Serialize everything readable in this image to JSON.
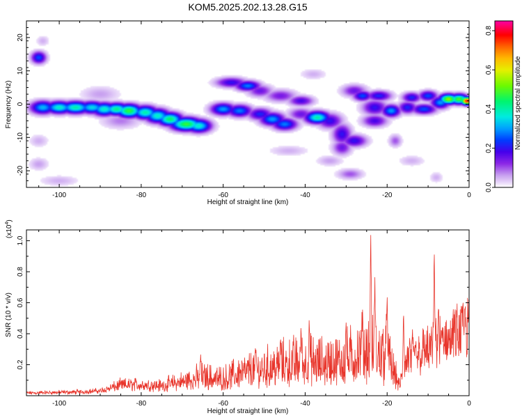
{
  "title": "KOM5.2025.202.13.28.G15",
  "spectrogram": {
    "type": "heatmap",
    "xlabel": "Height of straight line (km)",
    "ylabel": "Frequency (Hz)",
    "xlim": [
      -108,
      0
    ],
    "ylim": [
      -25,
      25
    ],
    "xticks": [
      -100,
      -80,
      -60,
      -40,
      -20,
      0
    ],
    "yticks": [
      20,
      10,
      0,
      -10,
      -20
    ],
    "colorbar": {
      "label": "Normalized spectral amplitude",
      "range": [
        0,
        0.85
      ],
      "ticks": [
        "0.0",
        "0.2",
        "0.4",
        "0.6",
        "0.8"
      ],
      "tick_values": [
        0.0,
        0.2,
        0.4,
        0.6,
        0.8
      ]
    },
    "blobs": [
      {
        "x": -105,
        "y": 14,
        "a": 0.25,
        "sx": 1.2,
        "sy": 1.2
      },
      {
        "x": -104,
        "y": 19,
        "a": 0.05,
        "sx": 1.0,
        "sy": 1.0
      },
      {
        "x": -104,
        "y": -1,
        "a": 0.32,
        "sx": 2.0,
        "sy": 1.3
      },
      {
        "x": -100,
        "y": -1,
        "a": 0.38,
        "sx": 2.2,
        "sy": 1.2
      },
      {
        "x": -96,
        "y": -1,
        "a": 0.4,
        "sx": 2.4,
        "sy": 1.2
      },
      {
        "x": -92,
        "y": -1,
        "a": 0.35,
        "sx": 2.2,
        "sy": 1.2
      },
      {
        "x": -89,
        "y": -1.5,
        "a": 0.38,
        "sx": 2.0,
        "sy": 1.3
      },
      {
        "x": -86,
        "y": -1.5,
        "a": 0.42,
        "sx": 2.0,
        "sy": 1.2
      },
      {
        "x": -83,
        "y": -2,
        "a": 0.48,
        "sx": 2.0,
        "sy": 1.3
      },
      {
        "x": -79,
        "y": -2.5,
        "a": 0.4,
        "sx": 2.0,
        "sy": 1.3
      },
      {
        "x": -76,
        "y": -3.5,
        "a": 0.38,
        "sx": 2.0,
        "sy": 1.4
      },
      {
        "x": -73,
        "y": -4.5,
        "a": 0.44,
        "sx": 2.0,
        "sy": 1.3
      },
      {
        "x": -69,
        "y": -6,
        "a": 0.48,
        "sx": 2.5,
        "sy": 1.3
      },
      {
        "x": -66,
        "y": -6.5,
        "a": 0.38,
        "sx": 2.0,
        "sy": 1.3
      },
      {
        "x": -90,
        "y": 3,
        "a": 0.06,
        "sx": 3.0,
        "sy": 1.5
      },
      {
        "x": -85,
        "y": -5,
        "a": 0.08,
        "sx": 3.0,
        "sy": 1.5
      },
      {
        "x": -105,
        "y": -11,
        "a": 0.05,
        "sx": 1.5,
        "sy": 1.2
      },
      {
        "x": -105,
        "y": -18,
        "a": 0.06,
        "sx": 1.5,
        "sy": 1.2
      },
      {
        "x": -100,
        "y": -23,
        "a": 0.05,
        "sx": 3.0,
        "sy": 1.0
      },
      {
        "x": -58,
        "y": 6.5,
        "a": 0.2,
        "sx": 2.5,
        "sy": 1.0
      },
      {
        "x": -54,
        "y": 5.5,
        "a": 0.28,
        "sx": 2.0,
        "sy": 1.0
      },
      {
        "x": -51,
        "y": 4,
        "a": 0.15,
        "sx": 2.0,
        "sy": 1.2
      },
      {
        "x": -46,
        "y": 2.5,
        "a": 0.14,
        "sx": 2.5,
        "sy": 1.2
      },
      {
        "x": -41,
        "y": 1,
        "a": 0.18,
        "sx": 2.0,
        "sy": 1.0
      },
      {
        "x": -60,
        "y": -1.5,
        "a": 0.3,
        "sx": 2.0,
        "sy": 1.2
      },
      {
        "x": -56,
        "y": -2,
        "a": 0.28,
        "sx": 2.0,
        "sy": 1.2
      },
      {
        "x": -51,
        "y": -3,
        "a": 0.22,
        "sx": 2.0,
        "sy": 1.2
      },
      {
        "x": -48,
        "y": -4.5,
        "a": 0.3,
        "sx": 2.0,
        "sy": 1.3
      },
      {
        "x": -45,
        "y": -6,
        "a": 0.28,
        "sx": 2.0,
        "sy": 1.2
      },
      {
        "x": -41,
        "y": -3,
        "a": 0.15,
        "sx": 2.0,
        "sy": 1.2
      },
      {
        "x": -37,
        "y": -4,
        "a": 0.4,
        "sx": 2.0,
        "sy": 1.2
      },
      {
        "x": -34,
        "y": -5,
        "a": 0.2,
        "sx": 2.0,
        "sy": 1.5
      },
      {
        "x": -31,
        "y": -9,
        "a": 0.2,
        "sx": 1.5,
        "sy": 2.0
      },
      {
        "x": -28,
        "y": -11,
        "a": 0.2,
        "sx": 2.0,
        "sy": 1.2
      },
      {
        "x": -31,
        "y": -13,
        "a": 0.15,
        "sx": 1.5,
        "sy": 1.5
      },
      {
        "x": -29,
        "y": -21,
        "a": 0.1,
        "sx": 2.0,
        "sy": 1.0
      },
      {
        "x": -44,
        "y": -14,
        "a": 0.05,
        "sx": 3.0,
        "sy": 1.0
      },
      {
        "x": -28,
        "y": 4,
        "a": 0.15,
        "sx": 2.0,
        "sy": 1.2
      },
      {
        "x": -26,
        "y": 2.5,
        "a": 0.25,
        "sx": 1.5,
        "sy": 1.0
      },
      {
        "x": -22,
        "y": 2.5,
        "a": 0.22,
        "sx": 2.0,
        "sy": 1.0
      },
      {
        "x": -23,
        "y": -1,
        "a": 0.2,
        "sx": 2.0,
        "sy": 1.5
      },
      {
        "x": -19,
        "y": -2,
        "a": 0.3,
        "sx": 1.5,
        "sy": 1.2
      },
      {
        "x": -23,
        "y": -5,
        "a": 0.18,
        "sx": 2.0,
        "sy": 1.2
      },
      {
        "x": -18,
        "y": -11,
        "a": 0.1,
        "sx": 1.0,
        "sy": 1.2
      },
      {
        "x": -15,
        "y": -1,
        "a": 0.22,
        "sx": 1.5,
        "sy": 1.2
      },
      {
        "x": -11,
        "y": -1.5,
        "a": 0.25,
        "sx": 2.0,
        "sy": 1.0
      },
      {
        "x": -14,
        "y": 2,
        "a": 0.22,
        "sx": 1.5,
        "sy": 1.0
      },
      {
        "x": -10,
        "y": 2.5,
        "a": 0.25,
        "sx": 1.5,
        "sy": 1.0
      },
      {
        "x": -7,
        "y": 0.5,
        "a": 0.3,
        "sx": 1.5,
        "sy": 1.2
      },
      {
        "x": -5,
        "y": 1.5,
        "a": 0.55,
        "sx": 1.5,
        "sy": 1.0
      },
      {
        "x": -2.5,
        "y": 1.5,
        "a": 0.5,
        "sx": 1.5,
        "sy": 1.0
      },
      {
        "x": -0.5,
        "y": 1,
        "a": 0.8,
        "sx": 1.0,
        "sy": 0.8
      },
      {
        "x": -38,
        "y": 9,
        "a": 0.05,
        "sx": 2.0,
        "sy": 1.0
      },
      {
        "x": -34,
        "y": -17,
        "a": 0.06,
        "sx": 2.0,
        "sy": 1.0
      },
      {
        "x": -14,
        "y": -17,
        "a": 0.05,
        "sx": 2.0,
        "sy": 1.0
      },
      {
        "x": -8,
        "y": -22,
        "a": 0.05,
        "sx": 1.0,
        "sy": 1.0
      }
    ]
  },
  "snr": {
    "type": "line",
    "xlabel": "Height of straight line (km)",
    "ylabel": "SNR (10 * v/v)",
    "multiplier_label": "(x10",
    "multiplier_exp": "4",
    "multiplier_close": ")",
    "xlim": [
      -108,
      0
    ],
    "ylim": [
      0,
      1.07
    ],
    "xticks": [
      -100,
      -80,
      -60,
      -40,
      -20,
      0
    ],
    "yticks": [
      0.2,
      0.4,
      0.6,
      0.8,
      1.0
    ],
    "ytick_labels": [
      "0.2",
      "0.4",
      "0.6",
      "0.8",
      "1.0"
    ],
    "color": "#e8342a",
    "envelope": [
      {
        "x": -108,
        "base": 0.015,
        "amp": 0.015
      },
      {
        "x": -95,
        "base": 0.02,
        "amp": 0.02
      },
      {
        "x": -90,
        "base": 0.03,
        "amp": 0.02
      },
      {
        "x": -85,
        "base": 0.06,
        "amp": 0.05
      },
      {
        "x": -80,
        "base": 0.06,
        "amp": 0.06
      },
      {
        "x": -75,
        "base": 0.05,
        "amp": 0.06
      },
      {
        "x": -70,
        "base": 0.07,
        "amp": 0.09
      },
      {
        "x": -65,
        "base": 0.08,
        "amp": 0.14
      },
      {
        "x": -60,
        "base": 0.07,
        "amp": 0.13
      },
      {
        "x": -55,
        "base": 0.1,
        "amp": 0.18
      },
      {
        "x": -50,
        "base": 0.11,
        "amp": 0.21
      },
      {
        "x": -45,
        "base": 0.12,
        "amp": 0.26
      },
      {
        "x": -40,
        "base": 0.13,
        "amp": 0.29
      },
      {
        "x": -35,
        "base": 0.12,
        "amp": 0.27
      },
      {
        "x": -30,
        "base": 0.14,
        "amp": 0.3
      },
      {
        "x": -25,
        "base": 0.16,
        "amp": 0.4
      },
      {
        "x": -20,
        "base": 0.14,
        "amp": 0.36
      },
      {
        "x": -17,
        "base": 0.05,
        "amp": 0.06
      },
      {
        "x": -15,
        "base": 0.2,
        "amp": 0.22
      },
      {
        "x": -10,
        "base": 0.3,
        "amp": 0.14
      },
      {
        "x": -5,
        "base": 0.42,
        "amp": 0.08
      },
      {
        "x": 0,
        "base": 0.52,
        "amp": 0.05
      }
    ],
    "peaks": [
      {
        "x": -65.5,
        "y": 0.27
      },
      {
        "x": -52,
        "y": 0.3
      },
      {
        "x": -46,
        "y": 0.38
      },
      {
        "x": -41,
        "y": 0.45
      },
      {
        "x": -39,
        "y": 0.5
      },
      {
        "x": -30,
        "y": 0.48
      },
      {
        "x": -26,
        "y": 0.56
      },
      {
        "x": -24,
        "y": 1.07
      },
      {
        "x": -23,
        "y": 0.78
      },
      {
        "x": -20,
        "y": 0.68
      },
      {
        "x": -16,
        "y": 0.57
      },
      {
        "x": -8.5,
        "y": 0.95
      },
      {
        "x": -7.5,
        "y": 0.58
      },
      {
        "x": -1,
        "y": 0.56
      }
    ]
  }
}
